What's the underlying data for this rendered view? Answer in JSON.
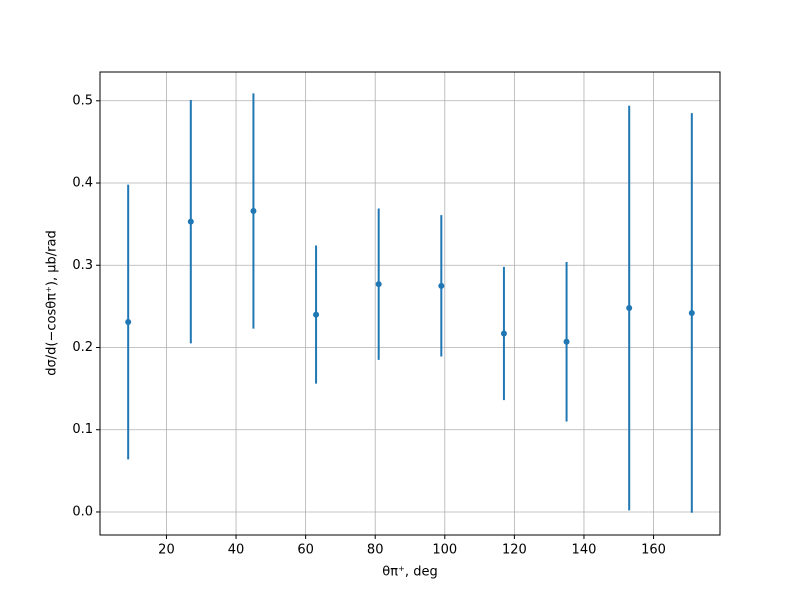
{
  "chart_data": {
    "type": "errorbar",
    "xlabel": "θπ⁺, deg",
    "ylabel": "dσ/d(−cosθπ⁺), μb/rad",
    "x": [
      9,
      27,
      45,
      63,
      81,
      99,
      117,
      135,
      153,
      171
    ],
    "series": [
      {
        "color": "#1f77b4",
        "values": [
          0.231,
          0.353,
          0.366,
          0.24,
          0.277,
          0.275,
          0.217,
          0.207,
          0.248,
          0.242
        ],
        "errors": [
          0.167,
          0.148,
          0.143,
          0.084,
          0.092,
          0.086,
          0.081,
          0.097,
          0.246,
          0.243
        ]
      }
    ],
    "xlim": [
      0.9,
      179.1
    ],
    "xticks": [
      20,
      40,
      60,
      80,
      100,
      120,
      140,
      160
    ],
    "ylim": [
      -0.028,
      0.535
    ],
    "yticks": [
      0.0,
      0.1,
      0.2,
      0.3,
      0.4,
      0.5
    ],
    "grid": true
  }
}
